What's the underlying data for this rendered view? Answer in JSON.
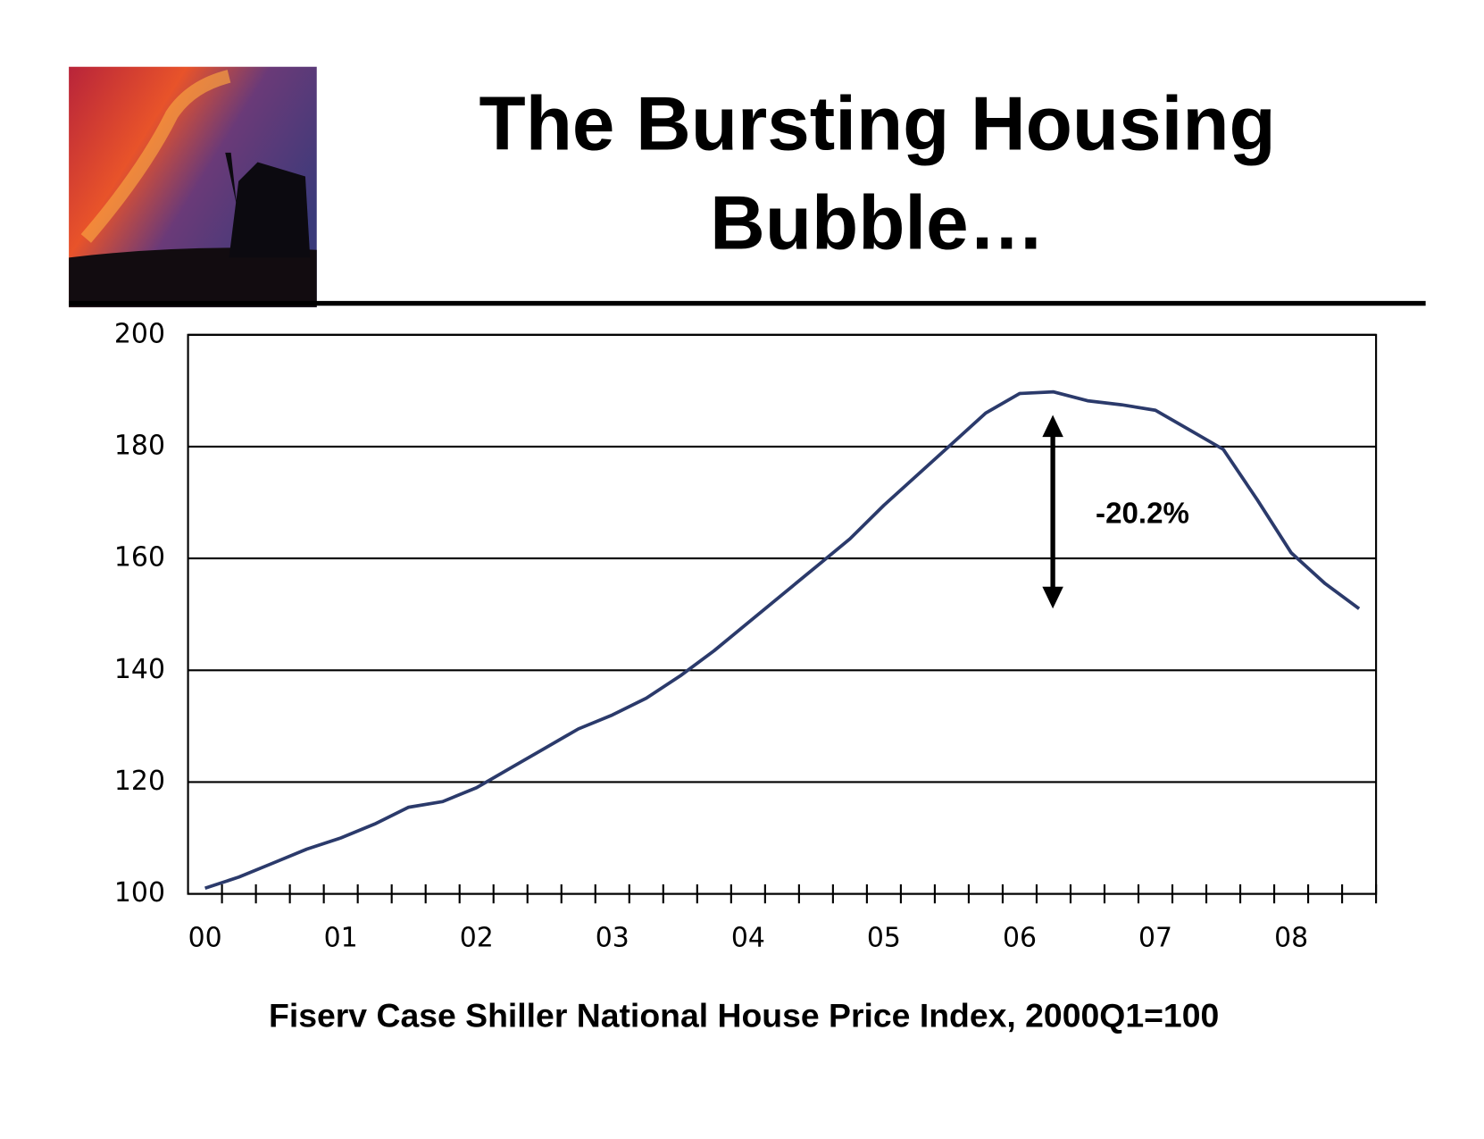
{
  "chart_data": {
    "type": "line",
    "title": "The Bursting Housing Bubble…",
    "x_label": "Fiserv Case Shiller National House Price Index, 2000Q1=100",
    "annotation": "-20.2%",
    "categories": [
      "00",
      null,
      null,
      null,
      "01",
      null,
      null,
      null,
      "02",
      null,
      null,
      null,
      "03",
      null,
      null,
      null,
      "04",
      null,
      null,
      null,
      "05",
      null,
      null,
      null,
      "06",
      null,
      null,
      null,
      "07",
      null,
      null,
      null,
      "08",
      null,
      null
    ],
    "values": [
      101,
      103,
      105.5,
      108,
      110,
      112.5,
      115.5,
      116.5,
      119,
      122.5,
      126,
      129.5,
      132,
      135,
      139,
      143.5,
      148.5,
      153.5,
      158.5,
      163.5,
      169.5,
      175,
      180.5,
      186,
      189.5,
      189.8,
      188.2,
      187.5,
      186.5,
      183,
      179.5,
      170.5,
      161,
      155.5,
      151
    ],
    "color": "#2b3a6b",
    "ylim": [
      100,
      200
    ],
    "yticks": [
      100,
      120,
      140,
      160,
      180,
      200
    ],
    "grid": true
  }
}
